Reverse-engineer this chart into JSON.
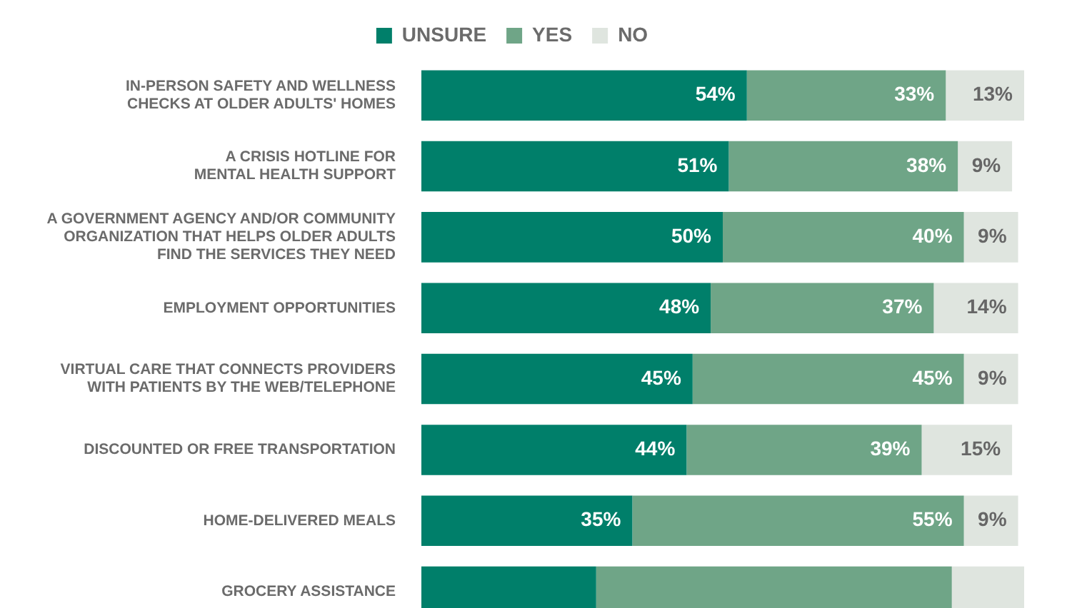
{
  "chart_data": {
    "type": "bar",
    "orientation": "horizontal",
    "stacked": true,
    "legend": "top",
    "categories": [
      "IN-PERSON SAFETY AND WELLNESS CHECKS AT OLDER ADULTS' HOMES",
      "A CRISIS HOTLINE FOR MENTAL HEALTH SUPPORT",
      "A GOVERNMENT AGENCY AND/OR COMMUNITY ORGANIZATION THAT HELPS OLDER ADULTS FIND THE SERVICES THEY NEED",
      "EMPLOYMENT OPPORTUNITIES",
      "VIRTUAL CARE THAT CONNECTS PROVIDERS WITH PATIENTS BY THE WEB/TELEPHONE",
      "DISCOUNTED OR FREE TRANSPORTATION",
      "HOME-DELIVERED MEALS",
      "GROCERY ASSISTANCE"
    ],
    "xlim": [
      0,
      100
    ],
    "series": [
      {
        "name": "UNSURE",
        "color": "#007f6a",
        "values": [
          54,
          51,
          50,
          48,
          45,
          44,
          35,
          29
        ],
        "value_labels": [
          "54%",
          "51%",
          "50%",
          "48%",
          "45%",
          "44%",
          "35%",
          null
        ]
      },
      {
        "name": "YES",
        "color": "#6fa587",
        "values": [
          33,
          38,
          40,
          37,
          45,
          39,
          55,
          59
        ],
        "value_labels": [
          "33%",
          "38%",
          "40%",
          "37%",
          "45%",
          "39%",
          "55%",
          null
        ]
      },
      {
        "name": "NO",
        "color": "#dfe5df",
        "values": [
          13,
          9,
          9,
          14,
          9,
          15,
          9,
          12
        ],
        "value_labels": [
          "13%",
          "9%",
          "9%",
          "14%",
          "9%",
          "15%",
          "9%",
          null
        ]
      }
    ]
  }
}
